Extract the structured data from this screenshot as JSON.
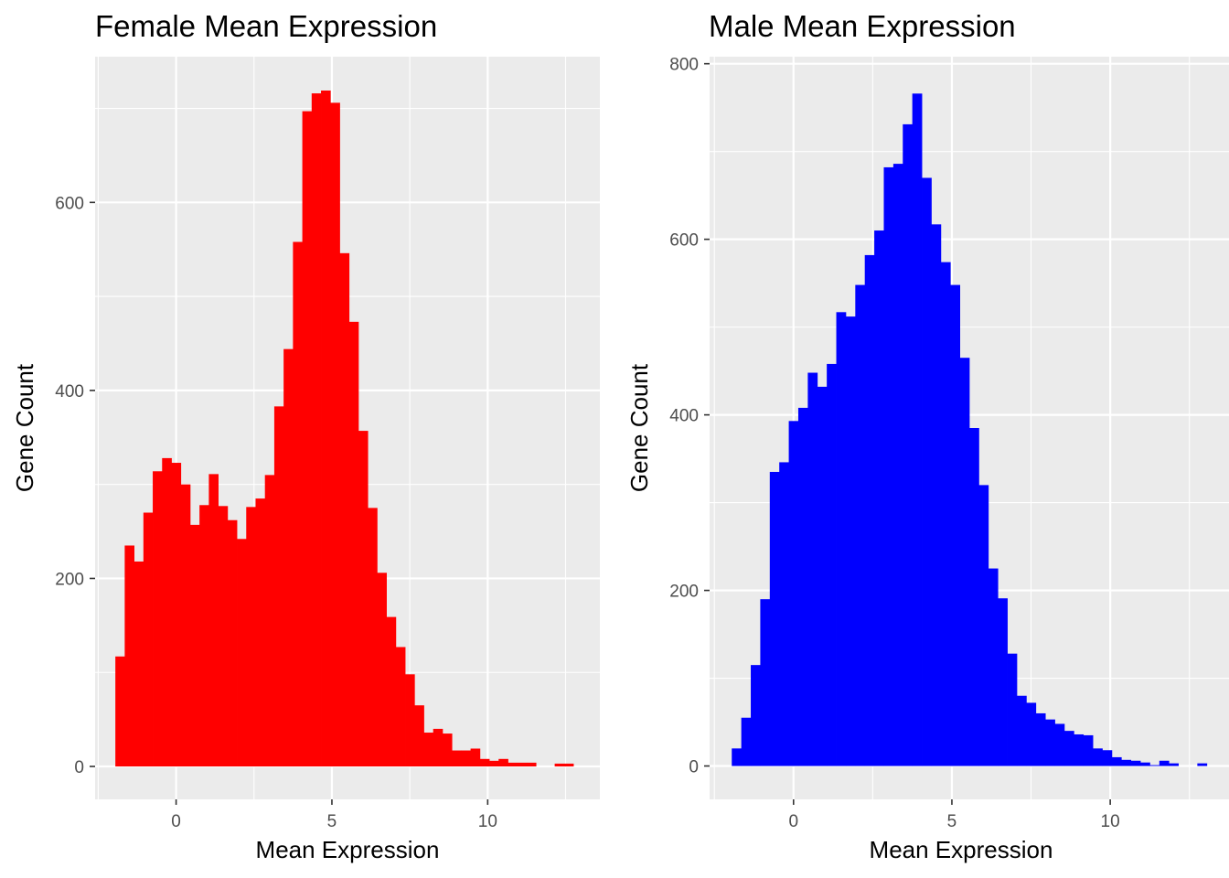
{
  "chart_data": [
    {
      "type": "bar",
      "title": "Female Mean Expression",
      "xlabel": "Mean Expression",
      "ylabel": "Gene Count",
      "xlim": [
        -2.6,
        13.6
      ],
      "ylim": [
        -35,
        755
      ],
      "xticks": [
        0,
        5,
        10
      ],
      "yticks": [
        0,
        200,
        400,
        600
      ],
      "grid": true,
      "fill": "#ff0000",
      "bin_width": 0.3,
      "bin_start": -1.95,
      "values": [
        117,
        235,
        218,
        270,
        314,
        328,
        323,
        300,
        257,
        278,
        311,
        277,
        262,
        242,
        276,
        285,
        310,
        383,
        444,
        558,
        697,
        716,
        719,
        706,
        546,
        473,
        357,
        275,
        206,
        159,
        127,
        98,
        65,
        36,
        40,
        35,
        17,
        17,
        19,
        8,
        6,
        8,
        4,
        4,
        4,
        0,
        0,
        3,
        3
      ]
    },
    {
      "type": "bar",
      "title": "Male Mean Expression",
      "xlabel": "Mean Expression",
      "ylabel": "Gene Count",
      "xlim": [
        -2.65,
        13.75
      ],
      "ylim": [
        -38,
        808
      ],
      "xticks": [
        0,
        5,
        10
      ],
      "yticks": [
        0,
        200,
        400,
        600,
        800
      ],
      "grid": true,
      "fill": "#0000ff",
      "bin_width": 0.3,
      "bin_start": -1.95,
      "values": [
        20,
        55,
        115,
        190,
        335,
        346,
        393,
        408,
        448,
        432,
        458,
        517,
        512,
        548,
        582,
        610,
        682,
        686,
        731,
        766,
        670,
        617,
        574,
        548,
        465,
        385,
        320,
        225,
        191,
        128,
        80,
        72,
        60,
        53,
        48,
        40,
        36,
        35,
        20,
        18,
        10,
        7,
        6,
        4,
        1,
        6,
        3,
        0,
        0,
        3
      ]
    }
  ]
}
